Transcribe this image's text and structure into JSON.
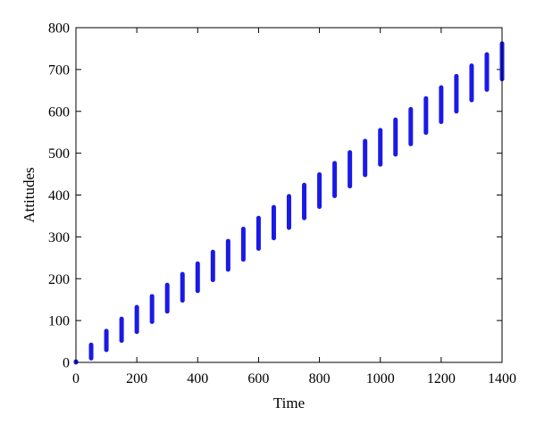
{
  "chart_data": {
    "type": "scatter",
    "title": "",
    "xlabel": "Time",
    "ylabel": "Attitudes",
    "xlim": [
      0,
      1400
    ],
    "ylim": [
      0,
      800
    ],
    "xticks": [
      0,
      200,
      400,
      600,
      800,
      1000,
      1200,
      1400
    ],
    "yticks": [
      0,
      100,
      200,
      300,
      400,
      500,
      600,
      700,
      800
    ],
    "grid": false,
    "legend": "none",
    "color": "#1a1ae6",
    "series": [
      {
        "segments": [
          {
            "x": 0,
            "y_min": 0,
            "y_max": 2
          },
          {
            "x": 50,
            "y_min": 10,
            "y_max": 42
          },
          {
            "x": 100,
            "y_min": 30,
            "y_max": 75
          },
          {
            "x": 150,
            "y_min": 52,
            "y_max": 104
          },
          {
            "x": 200,
            "y_min": 73,
            "y_max": 132
          },
          {
            "x": 250,
            "y_min": 97,
            "y_max": 158
          },
          {
            "x": 300,
            "y_min": 122,
            "y_max": 185
          },
          {
            "x": 350,
            "y_min": 148,
            "y_max": 211
          },
          {
            "x": 400,
            "y_min": 171,
            "y_max": 236
          },
          {
            "x": 450,
            "y_min": 197,
            "y_max": 264
          },
          {
            "x": 500,
            "y_min": 222,
            "y_max": 290
          },
          {
            "x": 550,
            "y_min": 246,
            "y_max": 319
          },
          {
            "x": 600,
            "y_min": 272,
            "y_max": 345
          },
          {
            "x": 650,
            "y_min": 297,
            "y_max": 371
          },
          {
            "x": 700,
            "y_min": 322,
            "y_max": 397
          },
          {
            "x": 750,
            "y_min": 345,
            "y_max": 424
          },
          {
            "x": 800,
            "y_min": 372,
            "y_max": 449
          },
          {
            "x": 850,
            "y_min": 398,
            "y_max": 476
          },
          {
            "x": 900,
            "y_min": 421,
            "y_max": 502
          },
          {
            "x": 950,
            "y_min": 448,
            "y_max": 529
          },
          {
            "x": 1000,
            "y_min": 473,
            "y_max": 555
          },
          {
            "x": 1050,
            "y_min": 497,
            "y_max": 580
          },
          {
            "x": 1100,
            "y_min": 522,
            "y_max": 605
          },
          {
            "x": 1150,
            "y_min": 549,
            "y_max": 631
          },
          {
            "x": 1200,
            "y_min": 575,
            "y_max": 657
          },
          {
            "x": 1250,
            "y_min": 600,
            "y_max": 684
          },
          {
            "x": 1300,
            "y_min": 627,
            "y_max": 709
          },
          {
            "x": 1350,
            "y_min": 652,
            "y_max": 736
          },
          {
            "x": 1400,
            "y_min": 677,
            "y_max": 762
          }
        ]
      }
    ]
  }
}
